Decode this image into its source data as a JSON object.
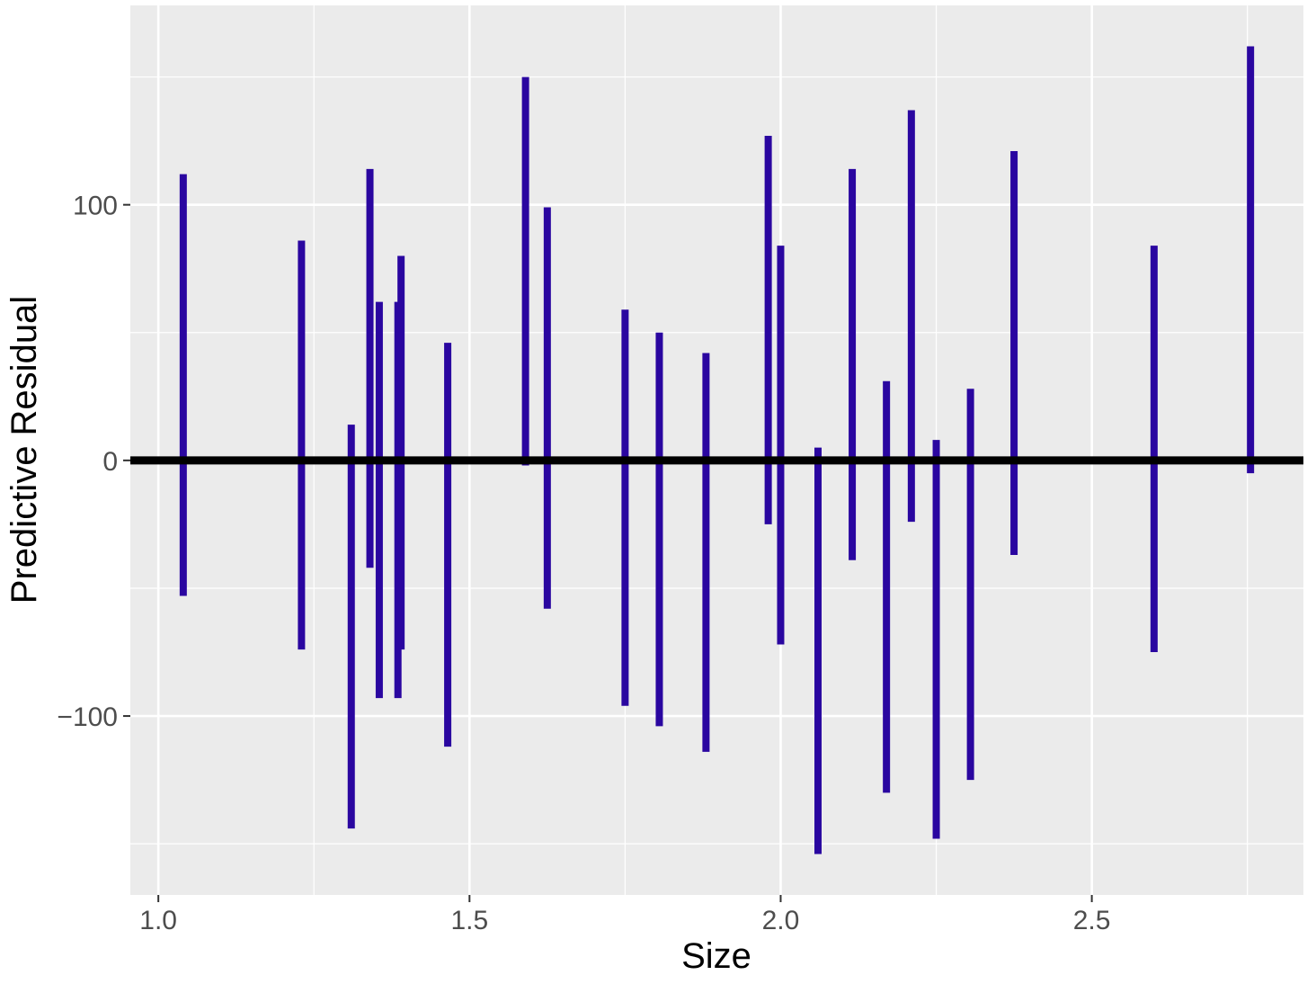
{
  "chart_data": {
    "type": "bar",
    "subtype": "interval-segments",
    "xlabel": "Size",
    "ylabel": "Predictive Residual",
    "xlim": [
      0.955,
      2.84
    ],
    "ylim": [
      -170,
      178
    ],
    "x_ticks": [
      1.0,
      1.5,
      2.0,
      2.5
    ],
    "x_tick_labels": [
      "1.0",
      "1.5",
      "2.0",
      "2.5"
    ],
    "y_ticks": [
      -100,
      0,
      100
    ],
    "y_tick_labels": [
      "−100",
      "0",
      "100"
    ],
    "reference_line_y": 0,
    "grid": true,
    "legend": "none",
    "segment_color": "#2a06a0",
    "reference_line_color": "#000000",
    "panel_background": "#ebebeb",
    "gridline_color": "#ffffff",
    "segments": [
      {
        "x": 1.04,
        "ymin": -53,
        "ymax": 112
      },
      {
        "x": 1.23,
        "ymin": -74,
        "ymax": 86
      },
      {
        "x": 1.31,
        "ymin": -144,
        "ymax": 14
      },
      {
        "x": 1.34,
        "ymin": -42,
        "ymax": 114
      },
      {
        "x": 1.355,
        "ymin": -93,
        "ymax": 62
      },
      {
        "x": 1.385,
        "ymin": -93,
        "ymax": 62
      },
      {
        "x": 1.39,
        "ymin": -74,
        "ymax": 80
      },
      {
        "x": 1.465,
        "ymin": -112,
        "ymax": 46
      },
      {
        "x": 1.59,
        "ymin": -2,
        "ymax": 150
      },
      {
        "x": 1.625,
        "ymin": -58,
        "ymax": 99
      },
      {
        "x": 1.75,
        "ymin": -96,
        "ymax": 59
      },
      {
        "x": 1.805,
        "ymin": -104,
        "ymax": 50
      },
      {
        "x": 1.88,
        "ymin": -114,
        "ymax": 42
      },
      {
        "x": 1.98,
        "ymin": -25,
        "ymax": 127
      },
      {
        "x": 2.0,
        "ymin": -72,
        "ymax": 84
      },
      {
        "x": 2.06,
        "ymin": -154,
        "ymax": 5
      },
      {
        "x": 2.115,
        "ymin": -39,
        "ymax": 114
      },
      {
        "x": 2.17,
        "ymin": -130,
        "ymax": 31
      },
      {
        "x": 2.21,
        "ymin": -24,
        "ymax": 137
      },
      {
        "x": 2.25,
        "ymin": -148,
        "ymax": 8
      },
      {
        "x": 2.305,
        "ymin": -125,
        "ymax": 28
      },
      {
        "x": 2.375,
        "ymin": -37,
        "ymax": 121
      },
      {
        "x": 2.6,
        "ymin": -75,
        "ymax": 84
      },
      {
        "x": 2.755,
        "ymin": -5,
        "ymax": 162
      }
    ]
  }
}
